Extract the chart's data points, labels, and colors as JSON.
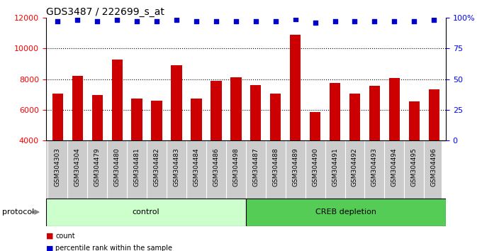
{
  "title": "GDS3487 / 222699_s_at",
  "categories": [
    "GSM304303",
    "GSM304304",
    "GSM304479",
    "GSM304480",
    "GSM304481",
    "GSM304482",
    "GSM304483",
    "GSM304484",
    "GSM304486",
    "GSM304498",
    "GSM304487",
    "GSM304488",
    "GSM304489",
    "GSM304490",
    "GSM304491",
    "GSM304492",
    "GSM304493",
    "GSM304494",
    "GSM304495",
    "GSM304496"
  ],
  "bar_values": [
    7050,
    8200,
    6950,
    9250,
    6750,
    6600,
    8900,
    6750,
    7900,
    8100,
    7600,
    7050,
    10900,
    5850,
    7750,
    7050,
    7550,
    8050,
    6550,
    7350
  ],
  "percentile_values": [
    97,
    98,
    97,
    98,
    97,
    97,
    98,
    97,
    97,
    97,
    97,
    97,
    99,
    96,
    97,
    97,
    97,
    97,
    97,
    98
  ],
  "bar_color": "#cc0000",
  "dot_color": "#0000cc",
  "ylim_left": [
    4000,
    12000
  ],
  "ylim_right": [
    0,
    100
  ],
  "yticks_left": [
    4000,
    6000,
    8000,
    10000,
    12000
  ],
  "yticks_right": [
    0,
    25,
    50,
    75,
    100
  ],
  "grid_values": [
    6000,
    8000,
    10000
  ],
  "control_samples": 10,
  "creb_samples": 10,
  "control_label": "control",
  "creb_label": "CREB depletion",
  "protocol_label": "protocol",
  "legend_count": "count",
  "legend_percentile": "percentile rank within the sample",
  "bg_plot": "#ffffff",
  "bg_xlabel": "#cccccc",
  "bg_control": "#ccffcc",
  "bg_creb": "#55cc55",
  "title_fontsize": 10,
  "tick_fontsize": 7,
  "label_fontsize": 8
}
